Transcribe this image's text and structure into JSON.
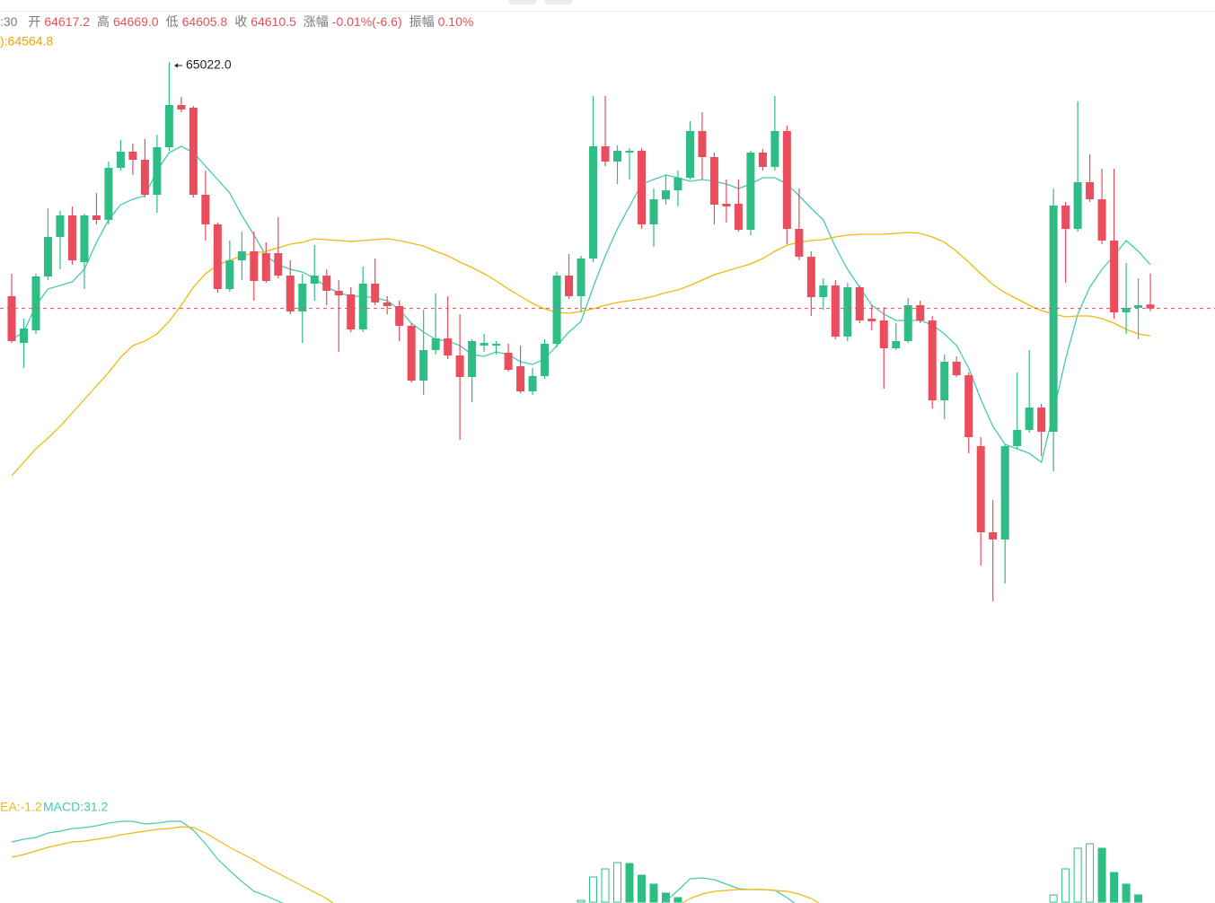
{
  "legend": {
    "time": ":30",
    "items": [
      {
        "label": "开",
        "value": "64617.2"
      },
      {
        "label": "高",
        "value": "64669.0"
      },
      {
        "label": "低",
        "value": "64605.8"
      },
      {
        "label": "收",
        "value": "64610.5"
      },
      {
        "label": "涨幅",
        "value": "-0.01%(-6.6)"
      },
      {
        "label": "振幅",
        "value": "0.10%"
      }
    ],
    "ma": "):64564.8"
  },
  "chart_data": {
    "type": "candlestick",
    "ylim": [
      63836,
      65126
    ],
    "up_color": "#2ebd85",
    "down_color": "#ea4d5c",
    "max_label": "65022.0",
    "open": [
      64631,
      64553,
      64574,
      64664,
      64730,
      64766,
      64688,
      64766,
      64758.5,
      64845.5,
      64872.5,
      64859,
      64800.5,
      64880,
      64950.5,
      64946,
      64800.5,
      64751,
      64643,
      64691,
      64706,
      64703,
      64703,
      64665.5,
      64605.5,
      64652,
      64665.5,
      64640,
      64634,
      64575.5,
      64652,
      64620.5,
      64614.5,
      64581.5,
      64490,
      64541,
      64560.5,
      64532,
      64496,
      64548.5,
      64548.5,
      64536.5,
      64514,
      64472,
      64497.5,
      64551.5,
      64665.5,
      64631,
      64694,
      64881.5,
      64856,
      64871,
      64874,
      64751,
      64793,
      64808,
      64829,
      64907,
      64863.5,
      64785.5,
      64785.5,
      64742,
      64871,
      64847,
      64907,
      64743.5,
      64697,
      64629.5,
      64649,
      64563.5,
      64646,
      64593.5,
      64590.5,
      64544,
      64556,
      64616,
      64590.5,
      64457,
      64521.5,
      64499,
      64380.5,
      64236.5,
      64224.5,
      64380.5,
      64407.5,
      64445,
      64404.5,
      64782.5,
      64743.5,
      64821.5,
      64793,
      64724,
      64604,
      64611.5,
      64617.2
    ],
    "high": [
      64668.5,
      64593.5,
      64668.5,
      64778,
      64773.5,
      64781,
      64769,
      64803.5,
      64856,
      64892,
      64886,
      64893.5,
      64901,
      65022,
      64964,
      64949,
      64841,
      64754,
      64724,
      64739,
      64739,
      64721,
      64763,
      64691,
      64668.5,
      64716.5,
      64676,
      64658,
      64646,
      64680.5,
      64694,
      64631,
      64623.5,
      64586,
      64608.5,
      64635.5,
      64631,
      64601,
      64559,
      64568,
      64556,
      64551.5,
      64548.5,
      64511,
      64559,
      64671.5,
      64701.5,
      64698.5,
      64965.5,
      64965.5,
      64883,
      64878.5,
      64878.5,
      64811,
      64833.5,
      64841,
      64923.5,
      64938.5,
      64871,
      64826,
      64826,
      64874,
      64877,
      64965.5,
      64916,
      64811,
      64706,
      64661,
      64658,
      64653.5,
      64649,
      64616,
      64613,
      64586,
      64628,
      64623.5,
      64598,
      64533.5,
      64530.5,
      64503.5,
      64395.5,
      64290.5,
      64383.5,
      64503.5,
      64541,
      64451,
      64811,
      64788.5,
      64956.5,
      64868,
      64844,
      64844,
      64686.5,
      64661,
      64669
    ],
    "low": [
      64553,
      64511,
      64568,
      64658,
      64676,
      64683.5,
      64643,
      64751,
      64751,
      64841,
      64833.5,
      64796,
      64770.5,
      64874,
      64938.5,
      64796,
      64724,
      64637,
      64638.5,
      64658,
      64623.5,
      64653.5,
      64661,
      64601,
      64553,
      64623.5,
      64616,
      64538,
      64571,
      64571,
      64616,
      64601,
      64556,
      64487,
      64466,
      64533.5,
      64526,
      64391,
      64454,
      64538,
      64533.5,
      64505,
      64469,
      64466,
      64493,
      64545.5,
      64626.5,
      64604,
      64688,
      64848.5,
      64818.5,
      64826,
      64743.5,
      64713.5,
      64784,
      64781,
      64826,
      64826,
      64751,
      64754,
      64739,
      64733,
      64841,
      64841,
      64718,
      64691,
      64598,
      64608.5,
      64559,
      64556,
      64586,
      64574,
      64476.5,
      64541,
      64553,
      64586,
      64443.5,
      64425.5,
      64496,
      64368.5,
      64181,
      64121,
      64151,
      64376,
      64403,
      64364,
      64338.5,
      64653.5,
      64739,
      64788.5,
      64718,
      64593.5,
      64568,
      64559,
      64605.8
    ],
    "close": [
      64556,
      64577,
      64664,
      64730,
      64766,
      64691,
      64766,
      64758.5,
      64845.5,
      64872.5,
      64859,
      64800.5,
      64880,
      64950.5,
      64943,
      64800.5,
      64751,
      64643,
      64691,
      64706,
      64656.5,
      64656.5,
      64665.5,
      64605.5,
      64652,
      64665.5,
      64640,
      64632.5,
      64575.5,
      64652,
      64620.5,
      64614.5,
      64581.5,
      64490,
      64541,
      64560.5,
      64532,
      64496,
      64556,
      64553,
      64551.5,
      64508,
      64472,
      64497.5,
      64551.5,
      64665.5,
      64631,
      64694,
      64881.5,
      64856,
      64874,
      64874,
      64751,
      64793,
      64808,
      64829,
      64907,
      64863.5,
      64784,
      64781,
      64742,
      64871,
      64847,
      64907,
      64743.5,
      64697,
      64629.5,
      64649,
      64563.5,
      64646,
      64590.5,
      64589,
      64544,
      64556,
      64616,
      64590.5,
      64457,
      64521.5,
      64499,
      64395.5,
      64236.5,
      64224.5,
      64380.5,
      64407.5,
      64445,
      64404.5,
      64782.5,
      64743.5,
      64821.5,
      64793,
      64724,
      64604,
      64611.5,
      64616,
      64610.5
    ],
    "ma_lines": [
      {
        "color": "#45c9b1",
        "values": [
          64559,
          64571,
          64616,
          64643,
          64649,
          64655,
          64676,
          64721,
          64758.5,
          64784,
          64793,
          64799,
          64841,
          64871,
          64881.5,
          64871,
          64848.5,
          64826,
          64803.5,
          64766,
          64733,
          64698.5,
          64683.5,
          64676,
          64671.5,
          64661,
          64646,
          64637,
          64631,
          64631,
          64628,
          64623.5,
          64608.5,
          64586,
          64571,
          64559,
          64556,
          64548.5,
          64533.5,
          64530.5,
          64538,
          64533.5,
          64521.5,
          64517,
          64526,
          64548.5,
          64571,
          64589,
          64646,
          64698.5,
          64743.5,
          64781,
          64818.5,
          64826,
          64833.5,
          64829,
          64823,
          64826,
          64823,
          64818.5,
          64811,
          64818.5,
          64829,
          64829,
          64818.5,
          64799,
          64778,
          64758.5,
          64713.5,
          64676,
          64646,
          64616,
          64601,
          64590.5,
          64590.5,
          64590.5,
          64583,
          64568,
          64548.5,
          64511,
          64458.5,
          64413.5,
          64383.5,
          64376,
          64368.5,
          64353.5,
          64436,
          64526,
          64601,
          64646,
          64676,
          64698.5,
          64724,
          64706,
          64683.5
        ]
      },
      {
        "color": "#f0b90b",
        "values": [
          64331,
          64353.5,
          64376,
          64394,
          64413.5,
          64436,
          64458.5,
          64481,
          64503.5,
          64529,
          64548.5,
          64556,
          64568,
          64589,
          64616,
          64646,
          64668.5,
          64683.5,
          64691,
          64698.5,
          64703,
          64706,
          64712,
          64718,
          64721,
          64727,
          64725.5,
          64724,
          64722.5,
          64724,
          64725.5,
          64727,
          64724,
          64719.5,
          64715,
          64706,
          64698.5,
          64688,
          64679,
          64668.5,
          64656.5,
          64643,
          64631,
          64619,
          64610,
          64604,
          64602.5,
          64605.5,
          64610,
          64616,
          64620.5,
          64623.5,
          64626.5,
          64631,
          64637,
          64641.5,
          64649,
          64658,
          64667,
          64673,
          64679,
          64685,
          64694,
          64706,
          64716.5,
          64721,
          64724,
          64725.5,
          64730,
          64733,
          64734.5,
          64734.5,
          64734.5,
          64736,
          64737.5,
          64736,
          64730,
          64721,
          64706,
          64688,
          64668.5,
          64650.5,
          64637,
          64626.5,
          64616,
          64607,
          64601,
          64596.5,
          64598,
          64598,
          64593.5,
          64586,
          64575.5,
          64568,
          64564.8
        ]
      }
    ],
    "macd": {
      "labels": [
        "EA:-1.2",
        "MACD:31.2"
      ],
      "ylim": [
        -0.5,
        62.5
      ],
      "dif": {
        "color": "#45c9b1",
        "values": [
          33.5,
          35,
          36,
          38.5,
          39.5,
          41,
          41.5,
          42.5,
          44,
          45,
          45,
          43.5,
          44,
          45,
          45,
          40,
          32.5,
          24,
          17.5,
          11.5,
          6,
          3.5,
          0.5,
          -2.5,
          null,
          null,
          null,
          null,
          null,
          null,
          null,
          null,
          null,
          null,
          null,
          null,
          null,
          null,
          null,
          null,
          null,
          null,
          null,
          null,
          null,
          null,
          null,
          null,
          null,
          null,
          null,
          null,
          null,
          -2.5,
          0.5,
          6.5,
          13,
          13.5,
          12.5,
          10,
          7.5,
          7,
          7,
          6.5,
          2.5,
          -2.5,
          null,
          null,
          null,
          null,
          null,
          null,
          null,
          null,
          null,
          null,
          null,
          null,
          null,
          null,
          null,
          null,
          null,
          null,
          null,
          null,
          null,
          null,
          null,
          null,
          null,
          null,
          null,
          null,
          null
        ]
      },
      "dea": {
        "color": "#f0b90b",
        "values": [
          25,
          26.5,
          28.5,
          30.5,
          32,
          33.5,
          34,
          35,
          36,
          37.5,
          38.5,
          39.5,
          40.5,
          41,
          42,
          41.5,
          38.5,
          34.5,
          30.5,
          27,
          23.5,
          19.5,
          16,
          12.5,
          9,
          5.5,
          2,
          -3,
          null,
          null,
          null,
          null,
          null,
          null,
          null,
          null,
          null,
          null,
          null,
          null,
          null,
          null,
          null,
          null,
          null,
          null,
          null,
          null,
          null,
          null,
          null,
          null,
          null,
          null,
          null,
          -2,
          2,
          4.5,
          6,
          6.5,
          7,
          7,
          7,
          6.5,
          6,
          4.5,
          2,
          -2,
          null,
          null,
          null,
          null,
          null,
          null,
          null,
          null,
          null,
          null,
          null,
          null,
          null,
          null,
          null,
          null,
          null,
          null,
          null,
          null,
          null,
          null,
          null,
          null,
          null,
          null,
          null
        ]
      },
      "hist": {
        "color": "#2ebd85",
        "values": [
          null,
          null,
          null,
          null,
          null,
          null,
          null,
          null,
          null,
          null,
          null,
          null,
          null,
          null,
          null,
          null,
          null,
          null,
          null,
          null,
          null,
          null,
          null,
          null,
          null,
          null,
          null,
          null,
          null,
          null,
          null,
          null,
          null,
          null,
          null,
          null,
          null,
          null,
          null,
          null,
          null,
          null,
          null,
          null,
          null,
          null,
          null,
          1,
          14,
          18.5,
          22,
          21.5,
          15,
          10,
          5,
          2.5,
          null,
          null,
          null,
          null,
          null,
          null,
          null,
          null,
          null,
          null,
          null,
          null,
          null,
          null,
          null,
          null,
          null,
          null,
          null,
          null,
          null,
          null,
          null,
          null,
          null,
          null,
          null,
          null,
          null,
          null,
          4,
          18.5,
          30,
          32.5,
          30,
          16.5,
          10,
          4,
          null
        ]
      }
    }
  }
}
